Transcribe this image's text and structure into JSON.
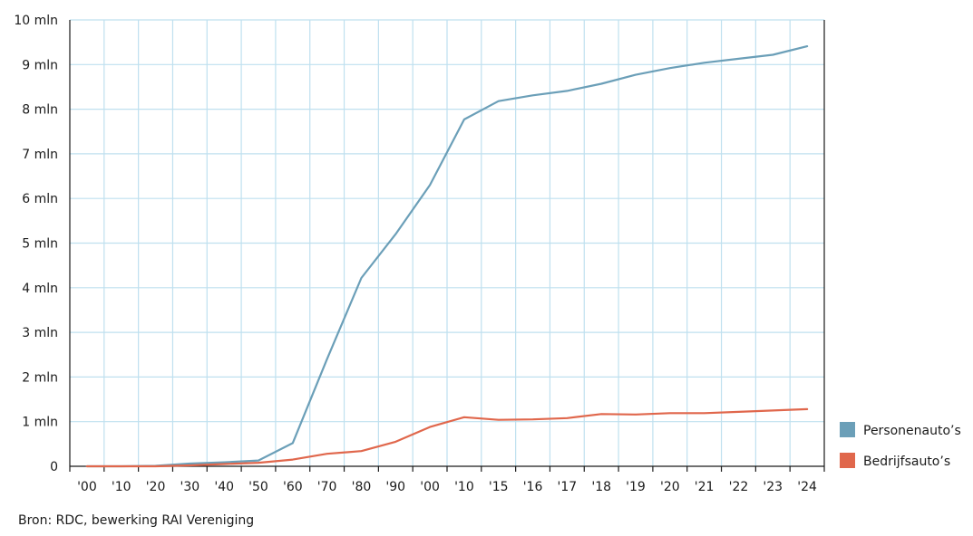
{
  "chart_data": {
    "type": "line",
    "categories": [
      "'00",
      "'10",
      "'20",
      "'30",
      "'40",
      "'50",
      "'60",
      "'70",
      "'80",
      "'90",
      "'00",
      "'10",
      "'15",
      "'16",
      "'17",
      "'18",
      "'19",
      "'20",
      "'21",
      "'22",
      "'23",
      "'24"
    ],
    "series": [
      {
        "name": "Personenauto’s",
        "color": "#6b9fb8",
        "values": [
          0,
          0,
          0.01,
          0.06,
          0.09,
          0.13,
          0.52,
          2.4,
          4.22,
          5.2,
          6.3,
          7.77,
          8.18,
          8.31,
          8.41,
          8.57,
          8.77,
          8.92,
          9.04,
          9.13,
          9.22,
          9.41
        ]
      },
      {
        "name": "Bedrijfsauto’s",
        "color": "#e0674c",
        "values": [
          0,
          0,
          0,
          0.02,
          0.05,
          0.08,
          0.15,
          0.28,
          0.34,
          0.55,
          0.88,
          1.1,
          1.04,
          1.05,
          1.08,
          1.17,
          1.16,
          1.19,
          1.19,
          1.22,
          1.25,
          1.28
        ]
      }
    ],
    "y_ticks": [
      {
        "value": 0,
        "label": "0"
      },
      {
        "value": 1,
        "label": "1 mln"
      },
      {
        "value": 2,
        "label": "2 mln"
      },
      {
        "value": 3,
        "label": "3 mln"
      },
      {
        "value": 4,
        "label": "4 mln"
      },
      {
        "value": 5,
        "label": "5 mln"
      },
      {
        "value": 6,
        "label": "6 mln"
      },
      {
        "value": 7,
        "label": "7 mln"
      },
      {
        "value": 8,
        "label": "8 mln"
      },
      {
        "value": 9,
        "label": "9 mln"
      },
      {
        "value": 10,
        "label": "10 mln"
      }
    ],
    "ylim": [
      0,
      10
    ],
    "grid": true,
    "legend_position": "bottom-right",
    "grid_color": "#bfe0ef",
    "source": "Bron: RDC, bewerking RAI Vereniging"
  }
}
